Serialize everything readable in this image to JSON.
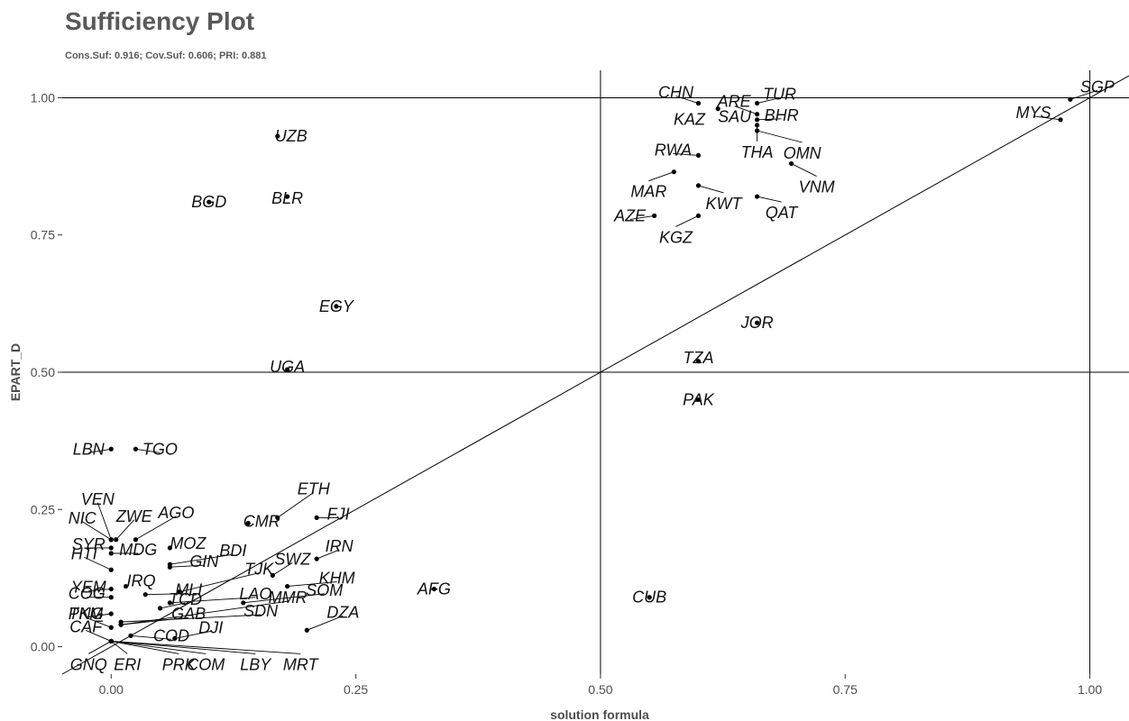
{
  "chart_data": {
    "type": "scatter",
    "title": "Sufficiency Plot",
    "subtitle": "Cons.Suf: 0.916; Cov.Suf: 0.606; PRI: 0.881",
    "xlabel": "solution formula",
    "ylabel": "EPART_D",
    "xlim": [
      -0.05,
      1.04
    ],
    "ylim": [
      -0.05,
      1.05
    ],
    "xticks": [
      0.0,
      0.25,
      0.5,
      0.75,
      1.0
    ],
    "xtick_labels": [
      "0.00",
      "0.25",
      "0.50",
      "0.75",
      "1.00"
    ],
    "yticks": [
      0.0,
      0.25,
      0.5,
      0.75,
      1.0
    ],
    "ytick_labels": [
      "0.00",
      "0.25",
      "0.50",
      "0.75",
      "1.00"
    ],
    "reference_lines": {
      "vertical": [
        0.5,
        1.0
      ],
      "horizontal": [
        0.5,
        1.0
      ],
      "diagonal": true
    },
    "grid": false,
    "points": [
      {
        "label": "SGP",
        "x": 0.98,
        "y": 0.997
      },
      {
        "label": "MYS",
        "x": 0.97,
        "y": 0.96
      },
      {
        "label": "CHN",
        "x": 0.6,
        "y": 0.99
      },
      {
        "label": "ARE",
        "x": 0.62,
        "y": 0.98
      },
      {
        "label": "TUR",
        "x": 0.66,
        "y": 0.99
      },
      {
        "label": "KAZ",
        "x": 0.6,
        "y": 0.99
      },
      {
        "label": "SAU",
        "x": 0.66,
        "y": 0.97
      },
      {
        "label": "BHR",
        "x": 0.66,
        "y": 0.96
      },
      {
        "label": "OMN",
        "x": 0.66,
        "y": 0.94
      },
      {
        "label": "THA",
        "x": 0.66,
        "y": 0.95
      },
      {
        "label": "RWA",
        "x": 0.6,
        "y": 0.895
      },
      {
        "label": "VNM",
        "x": 0.695,
        "y": 0.88
      },
      {
        "label": "MAR",
        "x": 0.575,
        "y": 0.865
      },
      {
        "label": "KWT",
        "x": 0.6,
        "y": 0.84
      },
      {
        "label": "QAT",
        "x": 0.66,
        "y": 0.82
      },
      {
        "label": "AZE",
        "x": 0.555,
        "y": 0.785
      },
      {
        "label": "KGZ",
        "x": 0.6,
        "y": 0.785
      },
      {
        "label": "UZB",
        "x": 0.17,
        "y": 0.93
      },
      {
        "label": "BLR",
        "x": 0.18,
        "y": 0.82
      },
      {
        "label": "BGD",
        "x": 0.1,
        "y": 0.81
      },
      {
        "label": "EGY",
        "x": 0.23,
        "y": 0.62
      },
      {
        "label": "JOR",
        "x": 0.66,
        "y": 0.59
      },
      {
        "label": "TZA",
        "x": 0.6,
        "y": 0.52
      },
      {
        "label": "UGA",
        "x": 0.18,
        "y": 0.505
      },
      {
        "label": "PAK",
        "x": 0.6,
        "y": 0.45
      },
      {
        "label": "LBN",
        "x": 0.0,
        "y": 0.36
      },
      {
        "label": "TGO",
        "x": 0.025,
        "y": 0.36
      },
      {
        "label": "ETH",
        "x": 0.17,
        "y": 0.235
      },
      {
        "label": "FJI",
        "x": 0.21,
        "y": 0.235
      },
      {
        "label": "VEN",
        "x": 0.0,
        "y": 0.195
      },
      {
        "label": "ZWE",
        "x": 0.005,
        "y": 0.195
      },
      {
        "label": "AGO",
        "x": 0.025,
        "y": 0.195
      },
      {
        "label": "NIC",
        "x": 0.0,
        "y": 0.195
      },
      {
        "label": "CMR",
        "x": 0.14,
        "y": 0.225
      },
      {
        "label": "MOZ",
        "x": 0.06,
        "y": 0.18
      },
      {
        "label": "SYR",
        "x": 0.0,
        "y": 0.18
      },
      {
        "label": "MDG",
        "x": 0.0,
        "y": 0.17
      },
      {
        "label": "BDI",
        "x": 0.06,
        "y": 0.15
      },
      {
        "label": "SWZ",
        "x": 0.165,
        "y": 0.13
      },
      {
        "label": "IRN",
        "x": 0.21,
        "y": 0.16
      },
      {
        "label": "GIN",
        "x": 0.06,
        "y": 0.145
      },
      {
        "label": "HTI",
        "x": 0.0,
        "y": 0.14
      },
      {
        "label": "KHM",
        "x": 0.18,
        "y": 0.11
      },
      {
        "label": "TJK",
        "x": 0.07,
        "y": 0.1
      },
      {
        "label": "YEM",
        "x": 0.0,
        "y": 0.105
      },
      {
        "label": "IRQ",
        "x": 0.015,
        "y": 0.11
      },
      {
        "label": "MLI",
        "x": 0.035,
        "y": 0.095
      },
      {
        "label": "COG",
        "x": 0.0,
        "y": 0.09
      },
      {
        "label": "AFG",
        "x": 0.33,
        "y": 0.105
      },
      {
        "label": "CUB",
        "x": 0.55,
        "y": 0.09
      },
      {
        "label": "LAO",
        "x": 0.06,
        "y": 0.08
      },
      {
        "label": "TCD",
        "x": 0.05,
        "y": 0.07
      },
      {
        "label": "SOM",
        "x": 0.135,
        "y": 0.08
      },
      {
        "label": "PNG",
        "x": 0.0,
        "y": 0.06
      },
      {
        "label": "DZA",
        "x": 0.2,
        "y": 0.03
      },
      {
        "label": "GAB",
        "x": 0.01,
        "y": 0.04
      },
      {
        "label": "SDN",
        "x": 0.01,
        "y": 0.045
      },
      {
        "label": "TKM",
        "x": 0.0,
        "y": 0.035
      },
      {
        "label": "MMR",
        "x": 0.01,
        "y": 0.04
      },
      {
        "label": "COD",
        "x": 0.02,
        "y": 0.02
      },
      {
        "label": "DJI",
        "x": 0.065,
        "y": 0.015
      },
      {
        "label": "CAF",
        "x": 0.0,
        "y": 0.01
      },
      {
        "label": "GNQ",
        "x": 0.0,
        "y": 0.01
      },
      {
        "label": "ERI",
        "x": 0.0,
        "y": 0.01
      },
      {
        "label": "PRK",
        "x": 0.0,
        "y": 0.01
      },
      {
        "label": "COM",
        "x": 0.0,
        "y": 0.01
      },
      {
        "label": "LBY",
        "x": 0.0,
        "y": 0.01
      },
      {
        "label": "MRT",
        "x": 0.0,
        "y": 0.01
      }
    ]
  }
}
